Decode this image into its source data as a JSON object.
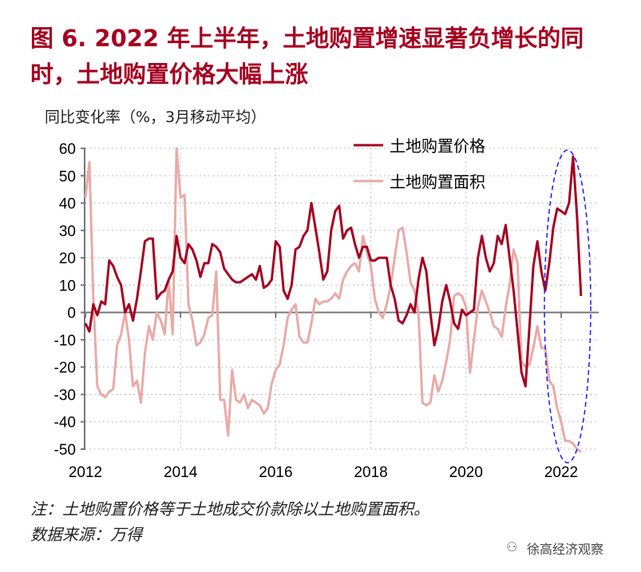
{
  "title": "图 6.   2022 年上半年，土地购置增速显著负增长的同时，土地购置价格大幅上涨",
  "unit_label": "同比变化率（%，3月移动平均）",
  "note": "注：土地购置价格等于土地成交价款除以土地购置面积。",
  "source": "数据来源：万得",
  "watermark": "徐高经济观察",
  "chart_data": {
    "type": "line",
    "x_start": "2012-01",
    "x_frequency": "monthly",
    "xticks": [
      "2012",
      "2014",
      "2016",
      "2018",
      "2020",
      "2022"
    ],
    "ylim": [
      -50,
      60
    ],
    "yticks": [
      "60",
      "50",
      "40",
      "30",
      "20",
      "10",
      "0",
      "-10",
      "-20",
      "-30",
      "-40",
      "-50"
    ],
    "grid": true,
    "legend_placement": "top-right",
    "series": [
      {
        "name": "土地购置价格",
        "color": "#a50021",
        "values": [
          -4,
          -7,
          3,
          -1,
          4,
          3,
          19,
          17,
          13,
          10,
          0,
          3,
          -3,
          5,
          15,
          26,
          27,
          27,
          5,
          7,
          8,
          12,
          15,
          28,
          20,
          18,
          25,
          23,
          19,
          13,
          18,
          18,
          25,
          24,
          22,
          16,
          14,
          12,
          11,
          11,
          12,
          13,
          14,
          12,
          17,
          9,
          10,
          12,
          26,
          24,
          8,
          5,
          10,
          23,
          24,
          28,
          30,
          40,
          31,
          22,
          12,
          15,
          30,
          37,
          39,
          27,
          30,
          31,
          25,
          20,
          24,
          24,
          19,
          19,
          20,
          20,
          20,
          10,
          5,
          -3,
          -4,
          -1,
          3,
          0,
          12,
          20,
          15,
          0,
          -12,
          -6,
          4,
          10,
          4,
          -4,
          -6,
          1,
          -1,
          0,
          1,
          20,
          28,
          20,
          15,
          18,
          28,
          25,
          32,
          20,
          8,
          -7,
          -22,
          -27,
          -5,
          17,
          26,
          15,
          8,
          18,
          31,
          38,
          37,
          36,
          40,
          57,
          35,
          6
        ]
      },
      {
        "name": "土地购置面积",
        "color": "#e8aaa8",
        "values": [
          42,
          55,
          5,
          -27,
          -30,
          -31,
          -29,
          -28,
          -12,
          -8,
          0,
          -10,
          -27,
          -25,
          -33,
          -15,
          -5,
          -10,
          0,
          -3,
          -8,
          12,
          -8,
          60,
          42,
          43,
          3,
          -3,
          -12,
          -11,
          -8,
          -2,
          -1,
          15,
          -32,
          -32,
          -45,
          -21,
          -32,
          -33,
          -30,
          -35,
          -32,
          -33,
          -34,
          -37,
          -35,
          -26,
          -21,
          -19,
          -12,
          -2,
          1,
          3,
          -9,
          -11,
          -11,
          -4,
          5,
          3,
          4,
          4,
          5,
          7,
          5,
          12,
          15,
          17,
          18,
          15,
          28,
          22,
          17,
          5,
          0,
          -2,
          3,
          10,
          20,
          30,
          31,
          22,
          11,
          8,
          0,
          -33,
          -34,
          -33,
          -23,
          -29,
          -25,
          -18,
          -10,
          6,
          7,
          6,
          2,
          -22,
          -10,
          2,
          8,
          4,
          0,
          -5,
          -6,
          -9,
          2,
          10,
          23,
          18,
          -18,
          -20,
          -19,
          -13,
          -5,
          -13,
          -13,
          -25,
          -27,
          -35,
          -40,
          -47,
          -47,
          -48,
          -50,
          -51
        ]
      }
    ],
    "annotation": {
      "shape": "dashed-ellipse",
      "color": "#1a1aff",
      "highlights": "2021H2-2022H1"
    }
  }
}
